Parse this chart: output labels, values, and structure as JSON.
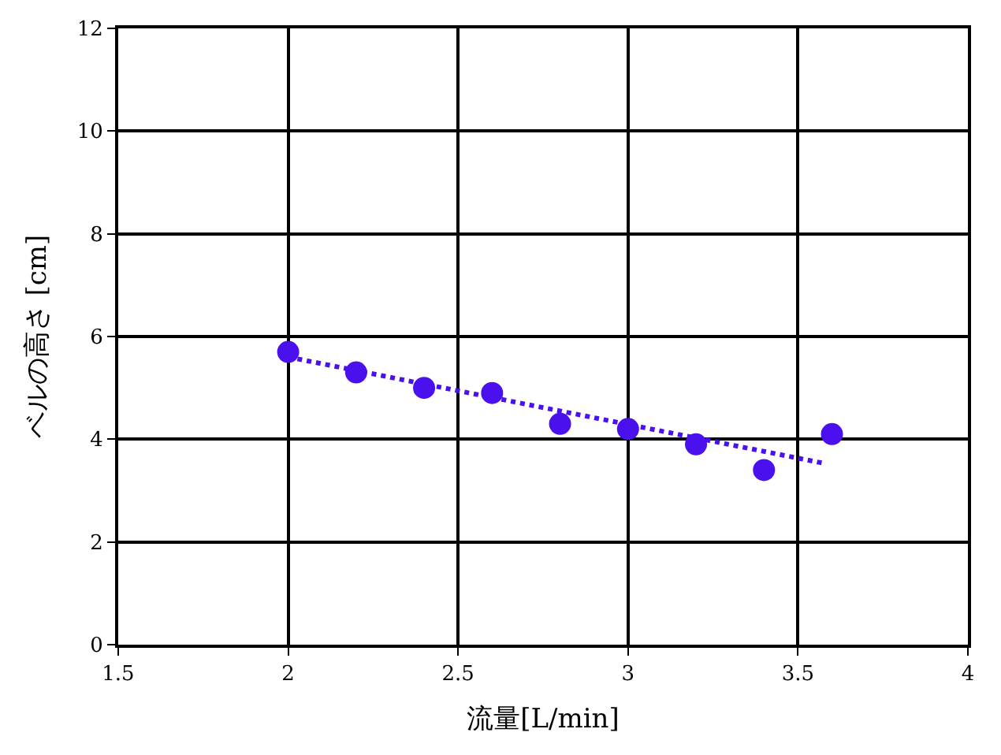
{
  "chart_data": {
    "type": "scatter",
    "xlabel": "流量[L/min]",
    "ylabel": "ベルの高さ [cm]",
    "series": [
      {
        "color": "#4b10ee",
        "marker": "circle",
        "x": [
          2,
          2.2,
          2.4,
          2.6,
          2.8,
          3.0,
          3.2,
          3.4,
          3.6
        ],
        "values": [
          5.7,
          5.3,
          5.0,
          4.9,
          4.3,
          4.2,
          3.9,
          3.4,
          4.1
        ]
      },
      {
        "type": "line",
        "color": "#4b10ee",
        "marker": "none",
        "line_style": "dotted",
        "x": [
          2,
          3.57
        ],
        "values": [
          5.6,
          3.54
        ]
      }
    ],
    "xlim": [
      1.5,
      4
    ],
    "xticks": [
      1.5,
      2,
      2.5,
      3,
      3.5,
      4
    ],
    "ylim": [
      0,
      12
    ],
    "yticks": [
      0,
      2,
      4,
      6,
      8,
      10,
      12
    ],
    "grid": true
  }
}
